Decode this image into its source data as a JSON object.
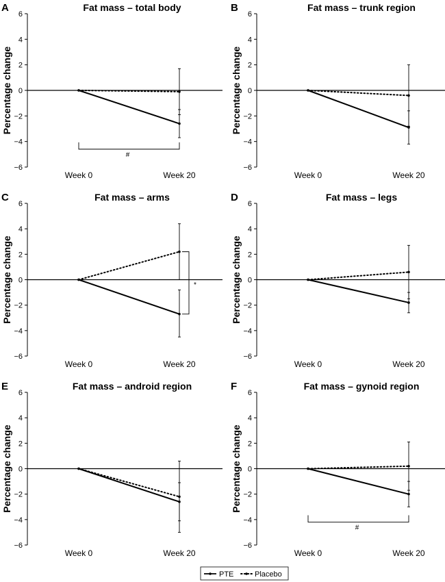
{
  "legend": {
    "items": [
      {
        "label": "PTE",
        "style": "solid"
      },
      {
        "label": "Placebo",
        "style": "dotted"
      }
    ]
  },
  "chart_data": [
    {
      "type": "line",
      "panel": "A",
      "title": "Fat mass – total body",
      "ylabel": "Percentage change",
      "categories": [
        "Week 0",
        "Week 20"
      ],
      "yticks": [
        6,
        4,
        2,
        0,
        -2,
        -4,
        -6
      ],
      "ylim": [
        -6,
        6
      ],
      "series": [
        {
          "name": "PTE",
          "values": [
            0,
            -2.6
          ],
          "err_upper": [
            0,
            -1.5
          ],
          "err_lower": [
            0,
            -3.7
          ]
        },
        {
          "name": "Placebo",
          "values": [
            0,
            -0.1
          ],
          "err_upper": [
            0,
            1.7
          ],
          "err_lower": [
            0,
            -1.9
          ]
        }
      ],
      "bracket": {
        "symbol": "#",
        "type": "horizontal",
        "y": -4.6
      }
    },
    {
      "type": "line",
      "panel": "B",
      "title": "Fat mass – trunk region",
      "ylabel": "Percentage change",
      "categories": [
        "Week 0",
        "Week 20"
      ],
      "yticks": [
        6,
        4,
        2,
        0,
        -2,
        -4,
        -6
      ],
      "ylim": [
        -6,
        6
      ],
      "series": [
        {
          "name": "PTE",
          "values": [
            0,
            -2.9
          ],
          "err_upper": [
            0,
            -1.6
          ],
          "err_lower": [
            0,
            -4.2
          ]
        },
        {
          "name": "Placebo",
          "values": [
            0,
            -0.4
          ],
          "err_upper": [
            0,
            2.0
          ],
          "err_lower": [
            0,
            -2.8
          ]
        }
      ]
    },
    {
      "type": "line",
      "panel": "C",
      "title": "Fat mass – arms",
      "ylabel": "Percentage change",
      "categories": [
        "Week 0",
        "Week 20"
      ],
      "yticks": [
        6,
        4,
        2,
        0,
        -2,
        -4,
        -6
      ],
      "ylim": [
        -6,
        6
      ],
      "series": [
        {
          "name": "PTE",
          "values": [
            0,
            -2.7
          ],
          "err_upper": [
            0,
            -0.8
          ],
          "err_lower": [
            0,
            -4.5
          ]
        },
        {
          "name": "Placebo",
          "values": [
            0,
            2.2
          ],
          "err_upper": [
            0,
            4.4
          ],
          "err_lower": [
            0,
            0.0
          ]
        }
      ],
      "bracket": {
        "symbol": "*",
        "type": "vertical",
        "from": -2.7,
        "to": 2.2
      }
    },
    {
      "type": "line",
      "panel": "D",
      "title": "Fat mass – legs",
      "ylabel": "Percentage change",
      "categories": [
        "Week 0",
        "Week 20"
      ],
      "yticks": [
        6,
        4,
        2,
        0,
        -2,
        -4,
        -6
      ],
      "ylim": [
        -6,
        6
      ],
      "series": [
        {
          "name": "PTE",
          "values": [
            0,
            -1.8
          ],
          "err_upper": [
            0,
            -1.0
          ],
          "err_lower": [
            0,
            -2.6
          ]
        },
        {
          "name": "Placebo",
          "values": [
            0,
            0.6
          ],
          "err_upper": [
            0,
            2.7
          ],
          "err_lower": [
            0,
            -1.5
          ]
        }
      ]
    },
    {
      "type": "line",
      "panel": "E",
      "title": "Fat mass – android region",
      "ylabel": "Percentage change",
      "categories": [
        "Week 0",
        "Week 20"
      ],
      "yticks": [
        6,
        4,
        2,
        0,
        -2,
        -4,
        -6
      ],
      "ylim": [
        -6,
        6
      ],
      "series": [
        {
          "name": "PTE",
          "values": [
            0,
            -2.6
          ],
          "err_upper": [
            0,
            -1.1
          ],
          "err_lower": [
            0,
            -4.1
          ]
        },
        {
          "name": "Placebo",
          "values": [
            0,
            -2.2
          ],
          "err_upper": [
            0,
            0.6
          ],
          "err_lower": [
            0,
            -5.0
          ]
        }
      ]
    },
    {
      "type": "line",
      "panel": "F",
      "title": "Fat mass – gynoid region",
      "ylabel": "Percentage change",
      "categories": [
        "Week 0",
        "Week 20"
      ],
      "yticks": [
        6,
        4,
        2,
        0,
        -2,
        -4,
        -6
      ],
      "ylim": [
        -6,
        6
      ],
      "series": [
        {
          "name": "PTE",
          "values": [
            0,
            -2.0
          ],
          "err_upper": [
            0,
            -1.0
          ],
          "err_lower": [
            0,
            -3.0
          ]
        },
        {
          "name": "Placebo",
          "values": [
            0,
            0.2
          ],
          "err_upper": [
            0,
            2.1
          ],
          "err_lower": [
            0,
            -1.7
          ]
        }
      ],
      "bracket": {
        "symbol": "#",
        "type": "horizontal",
        "y": -4.2
      }
    }
  ]
}
